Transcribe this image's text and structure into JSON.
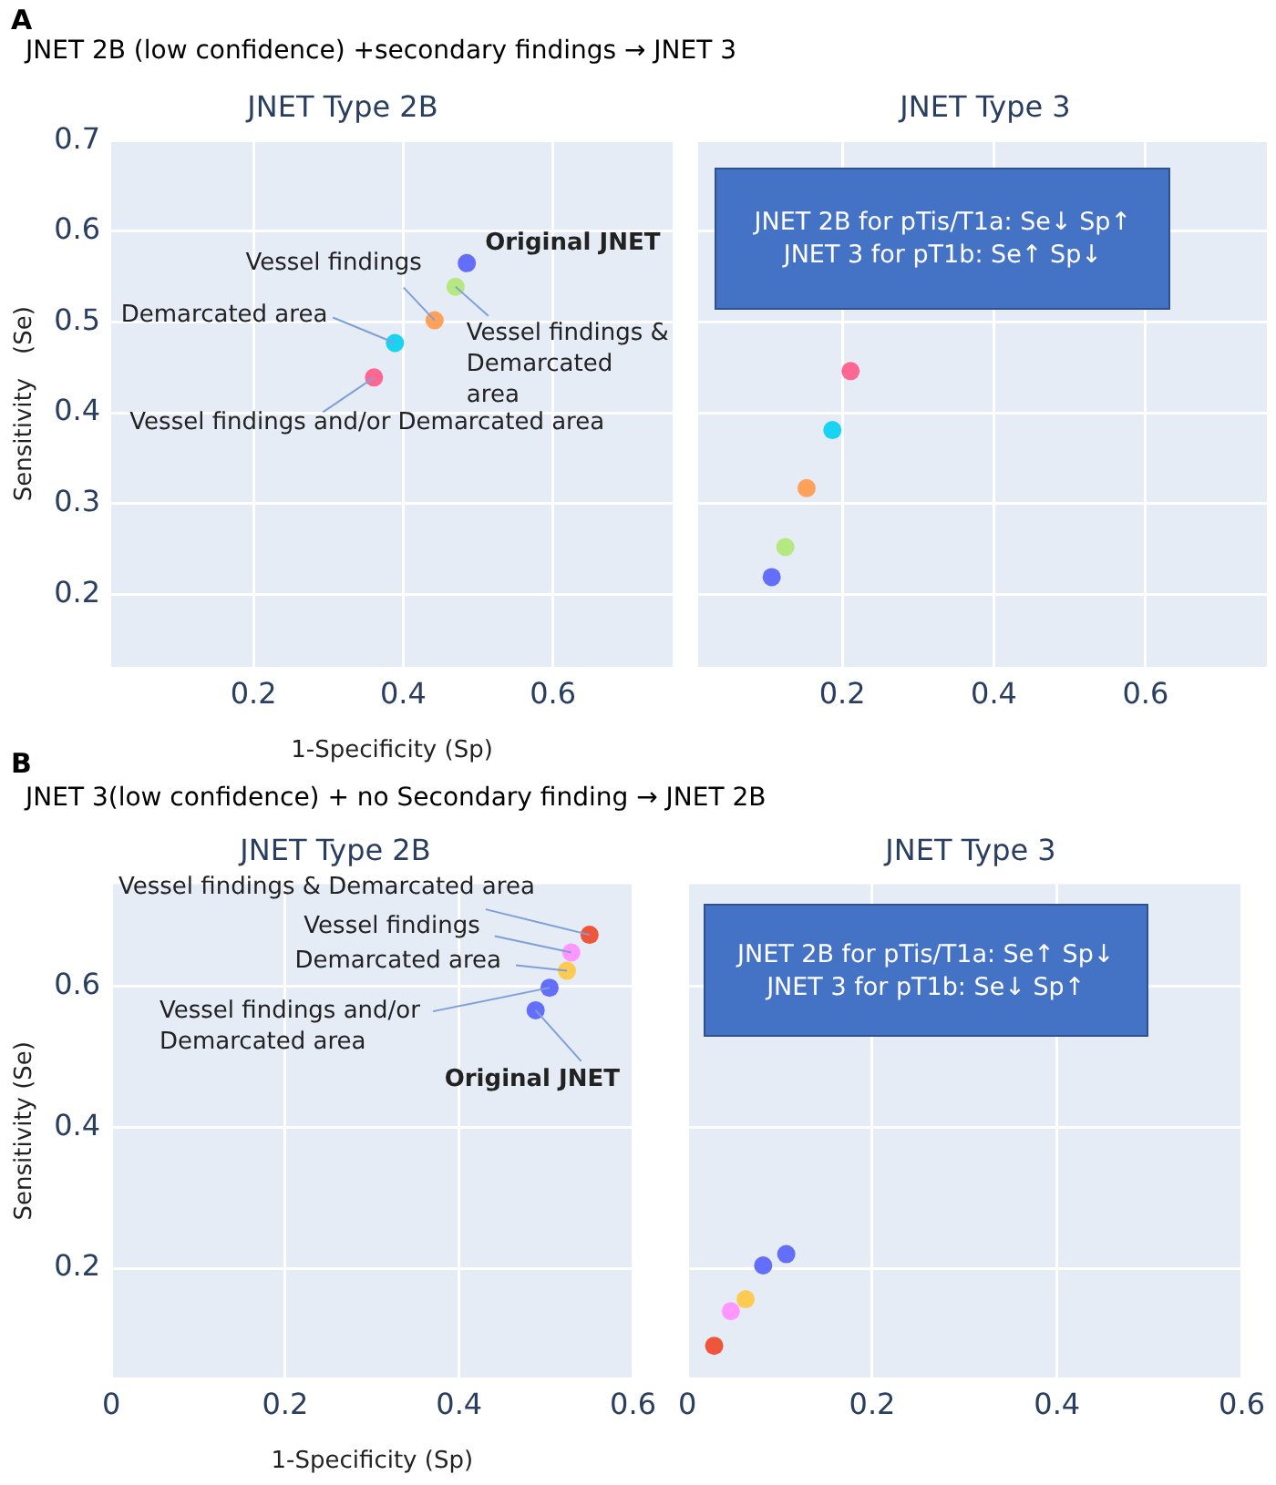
{
  "chart_data": [
    {
      "type": "scatter",
      "title": "JNET Type 2B",
      "xlabel": "1-Specificity (Sp)",
      "ylabel": "Sensitivity　(Se)",
      "annotations": [
        "A",
        "JNET 2B (low confidence) +secondary findings → JNET 3",
        {
          "text": "Original JNET",
          "x": 0.485,
          "y": 0.565
        },
        {
          "text": "Vessel findings",
          "x": 0.442,
          "y": 0.502
        },
        {
          "text": "Vessel findings & Demarcated area",
          "x": 0.47,
          "y": 0.539
        },
        {
          "text": "Demarcated area",
          "x": 0.389,
          "y": 0.477
        },
        {
          "text": "Vessel findings and/or Demarcated area",
          "x": 0.361,
          "y": 0.439
        }
      ],
      "x": [
        0.485,
        0.47,
        0.442,
        0.389,
        0.361
      ],
      "values": [
        0.565,
        0.539,
        0.502,
        0.477,
        0.439
      ],
      "colors": [
        "#636efa",
        "#b6e880",
        "#ffa15a",
        "#19d3f3",
        "#ff6692"
      ],
      "xlim": [
        0.01,
        0.76
      ],
      "xticks": [
        0.2,
        0.4,
        0.6
      ],
      "ylim": [
        0.12,
        0.7
      ],
      "yticks": [
        0.2,
        0.3,
        0.4,
        0.5,
        0.6,
        0.7
      ],
      "grid": true,
      "marker": "circle"
    },
    {
      "type": "scatter",
      "title": "JNET Type 3",
      "annotations": [
        "JNET 2B for pTis/T1a: Se↓  Sp↑",
        "JNET 3 for pT1b: Se↑  Sp↓"
      ],
      "x": [
        0.107,
        0.125,
        0.153,
        0.187,
        0.211
      ],
      "values": [
        0.219,
        0.252,
        0.317,
        0.381,
        0.446
      ],
      "colors": [
        "#636efa",
        "#b6e880",
        "#ffa15a",
        "#19d3f3",
        "#ff6692"
      ],
      "xlim": [
        0.01,
        0.76
      ],
      "xticks": [
        0.2,
        0.4,
        0.6
      ],
      "ylim": [
        0.12,
        0.7
      ],
      "yticks": [
        0.2,
        0.3,
        0.4,
        0.5,
        0.6,
        0.7
      ],
      "tick_labels": "x",
      "grid": true,
      "marker": "circle"
    },
    {
      "type": "scatter",
      "title": "JNET Type 2B",
      "xlabel": "1-Specificity (Sp)",
      "ylabel": "Sensitivity (Se)",
      "annotations": [
        "B",
        "JNET 3(low confidence) + no Secondary finding → JNET 2B",
        {
          "text": "Vessel findings & Demarcated area",
          "x": 0.55,
          "y": 0.673
        },
        {
          "text": "Vessel findings",
          "x": 0.529,
          "y": 0.648
        },
        {
          "text": "Demarcated area",
          "x": 0.524,
          "y": 0.622
        },
        {
          "text": "Vessel findings and/or Demarcated area",
          "x": 0.504,
          "y": 0.598
        },
        {
          "text": "Original JNET",
          "x": 0.488,
          "y": 0.566
        }
      ],
      "x": [
        0.55,
        0.529,
        0.524,
        0.504,
        0.488
      ],
      "values": [
        0.673,
        0.648,
        0.622,
        0.598,
        0.566
      ],
      "colors": [
        "#ef553b",
        "#ff97ff",
        "#fecb52",
        "#636efa",
        "#636efa"
      ],
      "xlim": [
        0,
        0.6
      ],
      "xticks": [
        0,
        0.2,
        0.4,
        0.6
      ],
      "ylim": [
        0.045,
        0.745
      ],
      "yticks": [
        0.2,
        0.4,
        0.6
      ],
      "grid": true,
      "marker": "circle"
    },
    {
      "type": "scatter",
      "title": "JNET Type 3",
      "annotations": [
        "JNET 2B for pTis/T1a: Se↑  Sp↓",
        "JNET 3 for pT1b: Se↓  Sp↑"
      ],
      "x": [
        0.029,
        0.047,
        0.063,
        0.082,
        0.107
      ],
      "values": [
        0.09,
        0.139,
        0.156,
        0.204,
        0.22
      ],
      "colors": [
        "#ef553b",
        "#ff97ff",
        "#fecb52",
        "#636efa",
        "#636efa"
      ],
      "xlim": [
        0,
        0.6
      ],
      "xticks": [
        0,
        0.2,
        0.4,
        0.6
      ],
      "ylim": [
        0.045,
        0.745
      ],
      "yticks": [
        0.2,
        0.4,
        0.6
      ],
      "tick_labels": "x",
      "grid": true,
      "marker": "circle"
    }
  ]
}
